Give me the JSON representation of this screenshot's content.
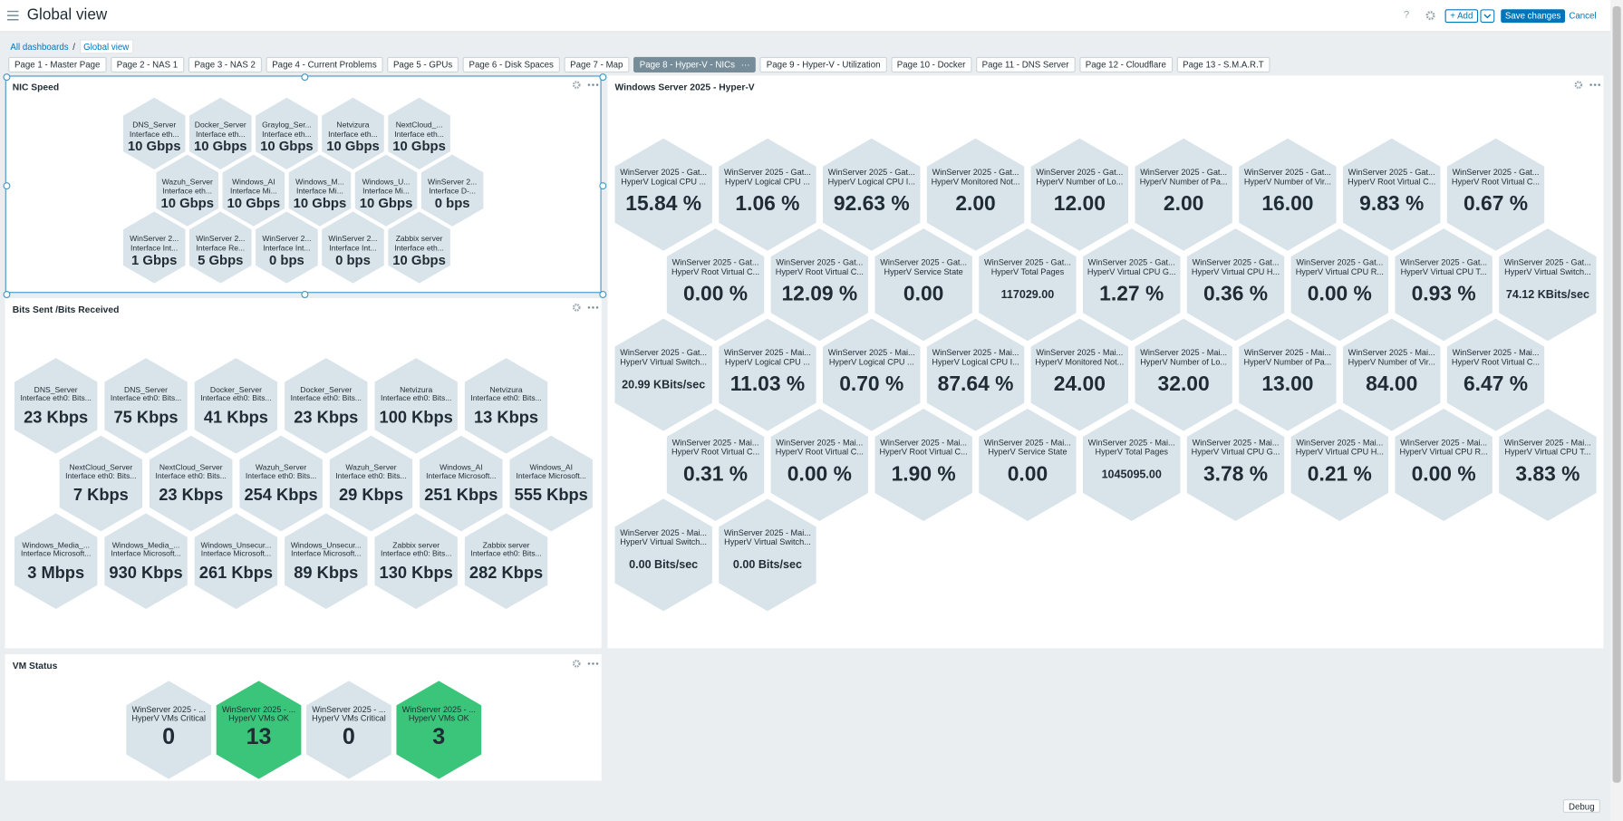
{
  "header": {
    "title": "Global view",
    "help": "?",
    "add": "Add",
    "save": "Save changes",
    "cancel": "Cancel"
  },
  "breadcrumbs": [
    "All dashboards",
    "Global view"
  ],
  "tabs": [
    {
      "label": "Page 1 - Master Page"
    },
    {
      "label": "Page 2 - NAS 1"
    },
    {
      "label": "Page 3 - NAS 2"
    },
    {
      "label": "Page 4 - Current Problems"
    },
    {
      "label": "Page 5 - GPUs"
    },
    {
      "label": "Page 6 - Disk Spaces"
    },
    {
      "label": "Page 7 - Map"
    },
    {
      "label": "Page 8 - Hyper-V - NICs",
      "active": true
    },
    {
      "label": "Page 9 - Hyper-V - Utilization"
    },
    {
      "label": "Page 10 - Docker"
    },
    {
      "label": "Page 11 - DNS Server"
    },
    {
      "label": "Page 12 - Cloudflare"
    },
    {
      "label": "Page 13 - S.M.A.R.T"
    }
  ],
  "widgets": [
    {
      "title": "NIC Speed",
      "rows": [
        [
          {
            "name": "DNS_Server",
            "desc": "Interface eth...",
            "value": "10 Gbps"
          },
          {
            "name": "Docker_Server",
            "desc": "Interface eth...",
            "value": "10 Gbps"
          },
          {
            "name": "Graylog_Ser...",
            "desc": "Interface eth...",
            "value": "10 Gbps"
          },
          {
            "name": "Netvizura",
            "desc": "Interface eth...",
            "value": "10 Gbps"
          },
          {
            "name": "NextCloud_...",
            "desc": "Interface eth...",
            "value": "10 Gbps"
          }
        ],
        [
          {
            "name": "Wazuh_Server",
            "desc": "Interface eth...",
            "value": "10 Gbps"
          },
          {
            "name": "Windows_AI",
            "desc": "Interface Mi...",
            "value": "10 Gbps"
          },
          {
            "name": "Windows_M...",
            "desc": "Interface Mi...",
            "value": "10 Gbps"
          },
          {
            "name": "Windows_U...",
            "desc": "Interface Mi...",
            "value": "10 Gbps"
          },
          {
            "name": "WinServer 2...",
            "desc": "Interface D-...",
            "value": "0 bps"
          }
        ],
        [
          {
            "name": "WinServer 2...",
            "desc": "Interface Int...",
            "value": "1 Gbps"
          },
          {
            "name": "WinServer 2...",
            "desc": "Interface Re...",
            "value": "5 Gbps"
          },
          {
            "name": "WinServer 2...",
            "desc": "Interface Int...",
            "value": "0 bps"
          },
          {
            "name": "WinServer 2...",
            "desc": "Interface Int...",
            "value": "0 bps"
          },
          {
            "name": "Zabbix server",
            "desc": "Interface eth...",
            "value": "10 Gbps"
          }
        ]
      ]
    },
    {
      "title": "Bits Sent /Bits Received",
      "rows": [
        [
          {
            "name": "DNS_Server",
            "desc": "Interface eth0: Bits...",
            "value": "23 Kbps"
          },
          {
            "name": "DNS_Server",
            "desc": "Interface eth0: Bits...",
            "value": "75 Kbps"
          },
          {
            "name": "Docker_Server",
            "desc": "Interface eth0: Bits...",
            "value": "41 Kbps"
          },
          {
            "name": "Docker_Server",
            "desc": "Interface eth0: Bits...",
            "value": "23 Kbps"
          },
          {
            "name": "Netvizura",
            "desc": "Interface eth0: Bits...",
            "value": "100 Kbps"
          },
          {
            "name": "Netvizura",
            "desc": "Interface eth0: Bits...",
            "value": "13 Kbps"
          }
        ],
        [
          {
            "name": "NextCloud_Server",
            "desc": "Interface eth0: Bits...",
            "value": "7 Kbps"
          },
          {
            "name": "NextCloud_Server",
            "desc": "Interface eth0: Bits...",
            "value": "23 Kbps"
          },
          {
            "name": "Wazuh_Server",
            "desc": "Interface eth0: Bits...",
            "value": "254 Kbps"
          },
          {
            "name": "Wazuh_Server",
            "desc": "Interface eth0: Bits...",
            "value": "29 Kbps"
          },
          {
            "name": "Windows_AI",
            "desc": "Interface Microsoft...",
            "value": "251 Kbps"
          },
          {
            "name": "Windows_AI",
            "desc": "Interface Microsoft...",
            "value": "555 Kbps"
          }
        ],
        [
          {
            "name": "Windows_Media_...",
            "desc": "Interface Microsoft...",
            "value": "3 Mbps"
          },
          {
            "name": "Windows_Media_...",
            "desc": "Interface Microsoft...",
            "value": "930 Kbps"
          },
          {
            "name": "Windows_Unsecur...",
            "desc": "Interface Microsoft...",
            "value": "261 Kbps"
          },
          {
            "name": "Windows_Unsecur...",
            "desc": "Interface Microsoft...",
            "value": "89 Kbps"
          },
          {
            "name": "Zabbix server",
            "desc": "Interface eth0: Bits...",
            "value": "130 Kbps"
          },
          {
            "name": "Zabbix server",
            "desc": "Interface eth0: Bits...",
            "value": "282 Kbps"
          }
        ]
      ]
    },
    {
      "title": "Windows Server 2025 - Hyper-V",
      "rows": [
        [
          {
            "name": "WinServer 2025 - Gat...",
            "desc": "HyperV Logical CPU ...",
            "value": "15.84 %"
          },
          {
            "name": "WinServer 2025 - Gat...",
            "desc": "HyperV Logical CPU ...",
            "value": "1.06 %"
          },
          {
            "name": "WinServer 2025 - Gat...",
            "desc": "HyperV Logical CPU I...",
            "value": "92.63 %"
          },
          {
            "name": "WinServer 2025 - Gat...",
            "desc": "HyperV Monitored Not...",
            "value": "2.00"
          },
          {
            "name": "WinServer 2025 - Gat...",
            "desc": "HyperV Number of Lo...",
            "value": "12.00"
          },
          {
            "name": "WinServer 2025 - Gat...",
            "desc": "HyperV Number of Pa...",
            "value": "2.00"
          },
          {
            "name": "WinServer 2025 - Gat...",
            "desc": "HyperV Number of Vir...",
            "value": "16.00"
          },
          {
            "name": "WinServer 2025 - Gat...",
            "desc": "HyperV Root Virtual C...",
            "value": "9.83 %"
          },
          {
            "name": "WinServer 2025 - Gat...",
            "desc": "HyperV Root Virtual C...",
            "value": "0.67 %"
          }
        ],
        [
          {
            "name": "WinServer 2025 - Gat...",
            "desc": "HyperV Root Virtual C...",
            "value": "0.00 %"
          },
          {
            "name": "WinServer 2025 - Gat...",
            "desc": "HyperV Root Virtual C...",
            "value": "12.09 %"
          },
          {
            "name": "WinServer 2025 - Gat...",
            "desc": "HyperV Service State",
            "value": "0.00"
          },
          {
            "name": "WinServer 2025 - Gat...",
            "desc": "HyperV Total Pages",
            "value": "117029.00"
          },
          {
            "name": "WinServer 2025 - Gat...",
            "desc": "HyperV Virtual CPU G...",
            "value": "1.27 %"
          },
          {
            "name": "WinServer 2025 - Gat...",
            "desc": "HyperV Virtual CPU H...",
            "value": "0.36 %"
          },
          {
            "name": "WinServer 2025 - Gat...",
            "desc": "HyperV Virtual CPU R...",
            "value": "0.00 %"
          },
          {
            "name": "WinServer 2025 - Gat...",
            "desc": "HyperV Virtual CPU T...",
            "value": "0.93 %"
          },
          {
            "name": "WinServer 2025 - Gat...",
            "desc": "HyperV Virtual Switch...",
            "value": "74.12 KBits/sec"
          }
        ],
        [
          {
            "name": "WinServer 2025 - Gat...",
            "desc": "HyperV Virtual Switch...",
            "value": "20.99 KBits/sec"
          },
          {
            "name": "WinServer 2025 - Mai...",
            "desc": "HyperV Logical CPU ...",
            "value": "11.03 %"
          },
          {
            "name": "WinServer 2025 - Mai...",
            "desc": "HyperV Logical CPU ...",
            "value": "0.70 %"
          },
          {
            "name": "WinServer 2025 - Mai...",
            "desc": "HyperV Logical CPU I...",
            "value": "87.64 %"
          },
          {
            "name": "WinServer 2025 - Mai...",
            "desc": "HyperV Monitored Not...",
            "value": "24.00"
          },
          {
            "name": "WinServer 2025 - Mai...",
            "desc": "HyperV Number of Lo...",
            "value": "32.00"
          },
          {
            "name": "WinServer 2025 - Mai...",
            "desc": "HyperV Number of Pa...",
            "value": "13.00"
          },
          {
            "name": "WinServer 2025 - Mai...",
            "desc": "HyperV Number of Vir...",
            "value": "84.00"
          },
          {
            "name": "WinServer 2025 - Mai...",
            "desc": "HyperV Root Virtual C...",
            "value": "6.47 %"
          }
        ],
        [
          {
            "name": "WinServer 2025 - Mai...",
            "desc": "HyperV Root Virtual C...",
            "value": "0.31 %"
          },
          {
            "name": "WinServer 2025 - Mai...",
            "desc": "HyperV Root Virtual C...",
            "value": "0.00 %"
          },
          {
            "name": "WinServer 2025 - Mai...",
            "desc": "HyperV Root Virtual C...",
            "value": "1.90 %"
          },
          {
            "name": "WinServer 2025 - Mai...",
            "desc": "HyperV Service State",
            "value": "0.00"
          },
          {
            "name": "WinServer 2025 - Mai...",
            "desc": "HyperV Total Pages",
            "value": "1045095.00"
          },
          {
            "name": "WinServer 2025 - Mai...",
            "desc": "HyperV Virtual CPU G...",
            "value": "3.78 %"
          },
          {
            "name": "WinServer 2025 - Mai...",
            "desc": "HyperV Virtual CPU H...",
            "value": "0.21 %"
          },
          {
            "name": "WinServer 2025 - Mai...",
            "desc": "HyperV Virtual CPU R...",
            "value": "0.00 %"
          },
          {
            "name": "WinServer 2025 - Mai...",
            "desc": "HyperV Virtual CPU T...",
            "value": "3.83 %"
          }
        ],
        [
          {
            "name": "WinServer 2025 - Mai...",
            "desc": "HyperV Virtual Switch...",
            "value": "0.00 Bits/sec"
          },
          {
            "name": "WinServer 2025 - Mai...",
            "desc": "HyperV Virtual Switch...",
            "value": "0.00 Bits/sec"
          }
        ]
      ]
    },
    {
      "title": "VM Status",
      "rows": [
        [
          {
            "name": "WinServer 2025 - ...",
            "desc": "HyperV VMs Critical",
            "value": "0"
          },
          {
            "name": "WinServer 2025 - ...",
            "desc": "HyperV VMs OK",
            "value": "13",
            "color": "#3ac57a"
          },
          {
            "name": "WinServer 2025 - ...",
            "desc": "HyperV VMs Critical",
            "value": "0"
          },
          {
            "name": "WinServer 2025 - ...",
            "desc": "HyperV VMs OK",
            "value": "3",
            "color": "#3ac57a"
          }
        ]
      ]
    }
  ],
  "footer": {
    "debug": "Debug"
  }
}
